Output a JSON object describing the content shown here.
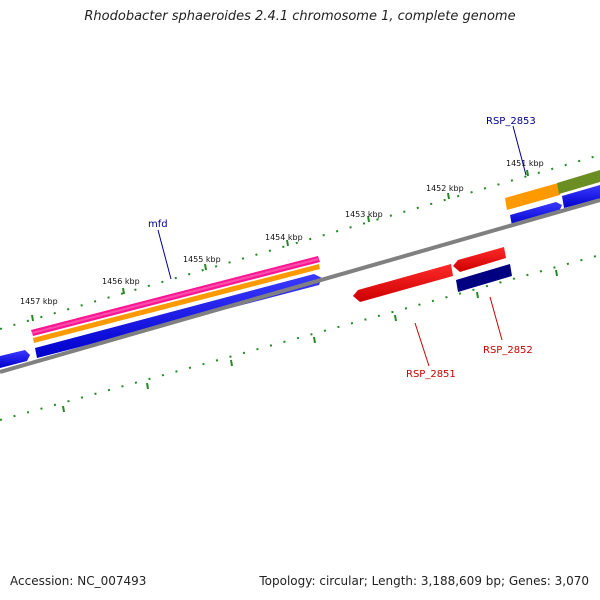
{
  "title": "Rhodobacter sphaeroides 2.4.1 chromosome 1, complete genome",
  "footer": {
    "accession": "Accession: NC_007493",
    "topology": "Topology: circular; Length: 3,188,609 bp; Genes: 3,070"
  },
  "ticks": [
    {
      "label": "1457 kbp"
    },
    {
      "label": "1456 kbp"
    },
    {
      "label": "1455 kbp"
    },
    {
      "label": "1454 kbp"
    },
    {
      "label": "1453 kbp"
    },
    {
      "label": "1452 kbp"
    },
    {
      "label": "1451 kbp"
    }
  ],
  "genes": {
    "mfd": {
      "label": "mfd",
      "color": "#00008b"
    },
    "rsp2853": {
      "label": "RSP_2853",
      "color": "#00008b"
    },
    "rsp2851": {
      "label": "RSP_2851",
      "color": "#cc0000"
    },
    "rsp2852": {
      "label": "RSP_2852",
      "color": "#cc0000"
    }
  },
  "colors": {
    "backbone": "#808080",
    "tick": "#228b22",
    "blue": "#0000ee",
    "navy": "#000080",
    "red": "#ee0000",
    "orange": "#ff9900",
    "pink": "#ff1493",
    "olive": "#6b8e23"
  }
}
